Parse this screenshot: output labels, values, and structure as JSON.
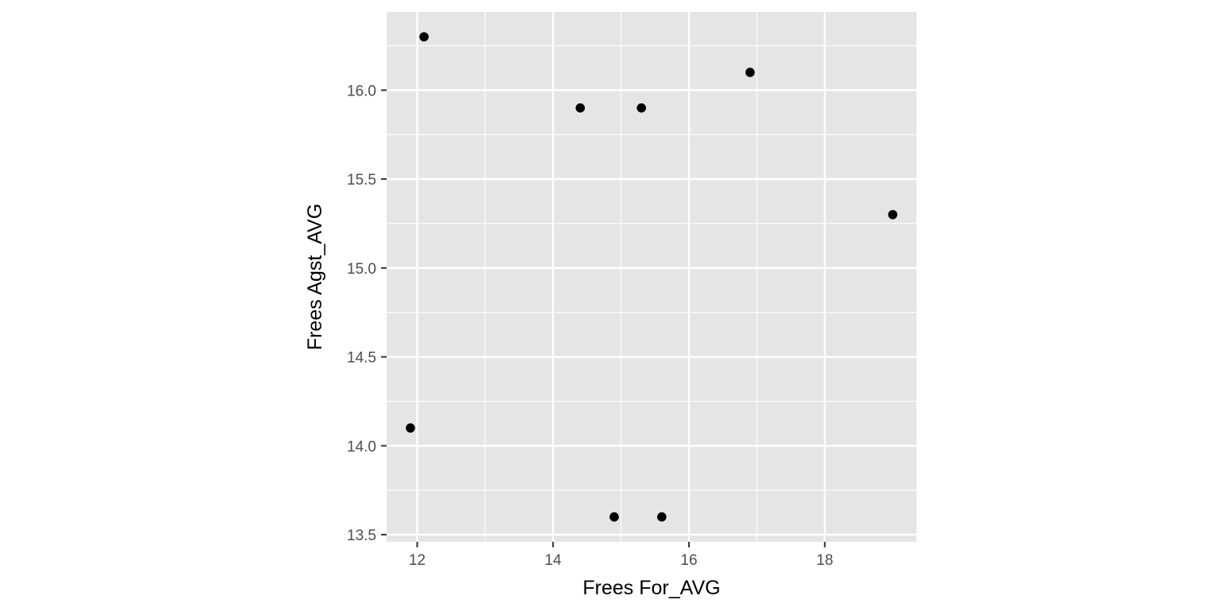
{
  "chart_data": {
    "type": "scatter",
    "title": "",
    "xlabel": "Frees For_AVG",
    "ylabel": "Frees Agst_AVG",
    "xlim": [
      11.55,
      19.35
    ],
    "ylim": [
      13.46,
      16.44
    ],
    "x_ticks": [
      12,
      14,
      16,
      18
    ],
    "x_tick_labels": [
      "12",
      "14",
      "16",
      "18"
    ],
    "y_ticks": [
      13.5,
      14.0,
      14.5,
      15.0,
      15.5,
      16.0
    ],
    "y_tick_labels": [
      "13.5",
      "14.0",
      "14.5",
      "15.0",
      "15.5",
      "16.0"
    ],
    "grid": true,
    "legend": "none",
    "colors": {
      "panel_background": "#e5e5e5",
      "grid": "#ffffff",
      "points": "#000000"
    },
    "points": [
      {
        "x": 12.1,
        "y": 16.3
      },
      {
        "x": 16.9,
        "y": 16.1
      },
      {
        "x": 14.4,
        "y": 15.9
      },
      {
        "x": 15.3,
        "y": 15.9
      },
      {
        "x": 19.0,
        "y": 15.3
      },
      {
        "x": 11.9,
        "y": 14.1
      },
      {
        "x": 14.9,
        "y": 13.6
      },
      {
        "x": 15.6,
        "y": 13.6
      }
    ]
  }
}
